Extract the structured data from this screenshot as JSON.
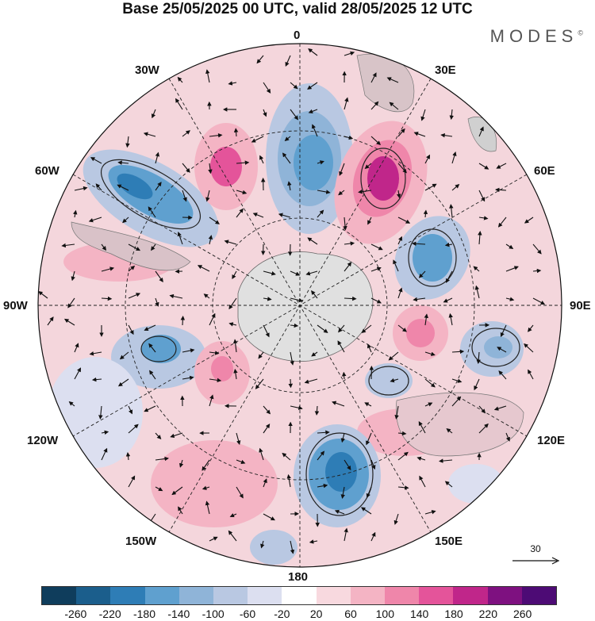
{
  "header": {
    "title": "Base 25/05/2025 00 UTC, valid 28/05/2025 12 UTC",
    "brand": "MODES",
    "brand_mark": "©"
  },
  "map": {
    "projection": "south polar stereographic",
    "longitude_labels": {
      "top": "0",
      "bottom": "180",
      "left": "90W",
      "right": "90E",
      "upper_left_1": "30W",
      "upper_left_2": "60W",
      "upper_right_1": "30E",
      "upper_right_2": "60E",
      "lower_left_1": "120W",
      "lower_left_2": "150W",
      "lower_right_1": "120E",
      "lower_right_2": "150E"
    },
    "field": "anomaly contours with wind vectors",
    "reference_vector": "30"
  },
  "colorbar": {
    "ticks": [
      "-260",
      "-220",
      "-180",
      "-140",
      "-100",
      "-60",
      "-20",
      "20",
      "60",
      "100",
      "140",
      "180",
      "220",
      "260"
    ],
    "colors": [
      "#0f3d5c",
      "#1b5e8c",
      "#2e7db6",
      "#5fa0cf",
      "#8fb4d8",
      "#b9c8e2",
      "#dcdff0",
      "#ffffff",
      "#f8d9df",
      "#f4b4c4",
      "#ef86aa",
      "#e4549a",
      "#c0268a",
      "#7e1180",
      "#4d0b75"
    ]
  },
  "colors": {
    "land": "#c8c8c8",
    "ocean_grey": "#e6e6e6"
  }
}
